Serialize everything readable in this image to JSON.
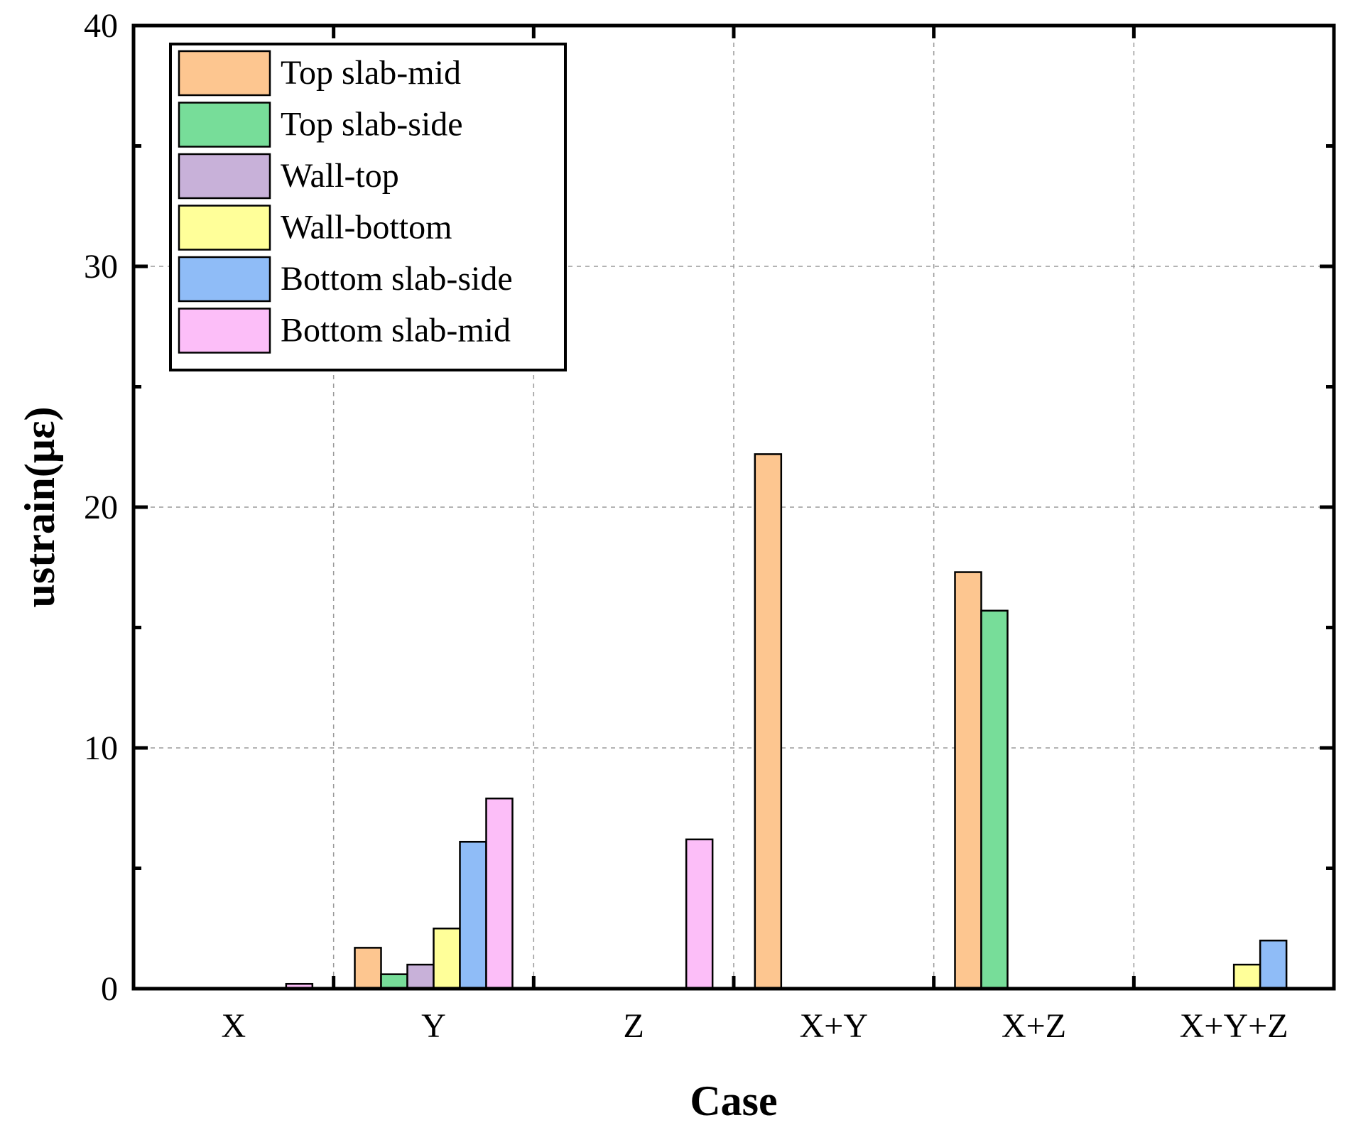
{
  "chart_data": {
    "type": "bar",
    "title": "",
    "xlabel": "Case",
    "ylabel": "ustrain(με)",
    "categories": [
      "X",
      "Y",
      "Z",
      "X+Y",
      "X+Z",
      "X+Y+Z"
    ],
    "ylim": [
      0,
      40
    ],
    "yticks": [
      0,
      10,
      20,
      30,
      40
    ],
    "grid": true,
    "legend_position": "top-left",
    "series": [
      {
        "name": "Top slab-mid",
        "color": "#FDC690",
        "values": [
          0,
          1.7,
          0,
          22.2,
          17.3,
          0
        ]
      },
      {
        "name": "Top slab-side",
        "color": "#77DD99",
        "values": [
          0,
          0.6,
          0,
          0,
          15.7,
          0
        ]
      },
      {
        "name": "Wall-top",
        "color": "#C8B1D9",
        "values": [
          0,
          1.0,
          0,
          0,
          0,
          0
        ]
      },
      {
        "name": "Wall-bottom",
        "color": "#FFFF99",
        "values": [
          0,
          2.5,
          0,
          0,
          0,
          1.0
        ]
      },
      {
        "name": "Bottom slab-side",
        "color": "#8FBCF7",
        "values": [
          0,
          6.1,
          0,
          0,
          0,
          2.0
        ]
      },
      {
        "name": "Bottom slab-mid",
        "color": "#FCBEF8",
        "values": [
          0.2,
          7.9,
          6.2,
          0,
          0,
          0
        ]
      }
    ]
  }
}
